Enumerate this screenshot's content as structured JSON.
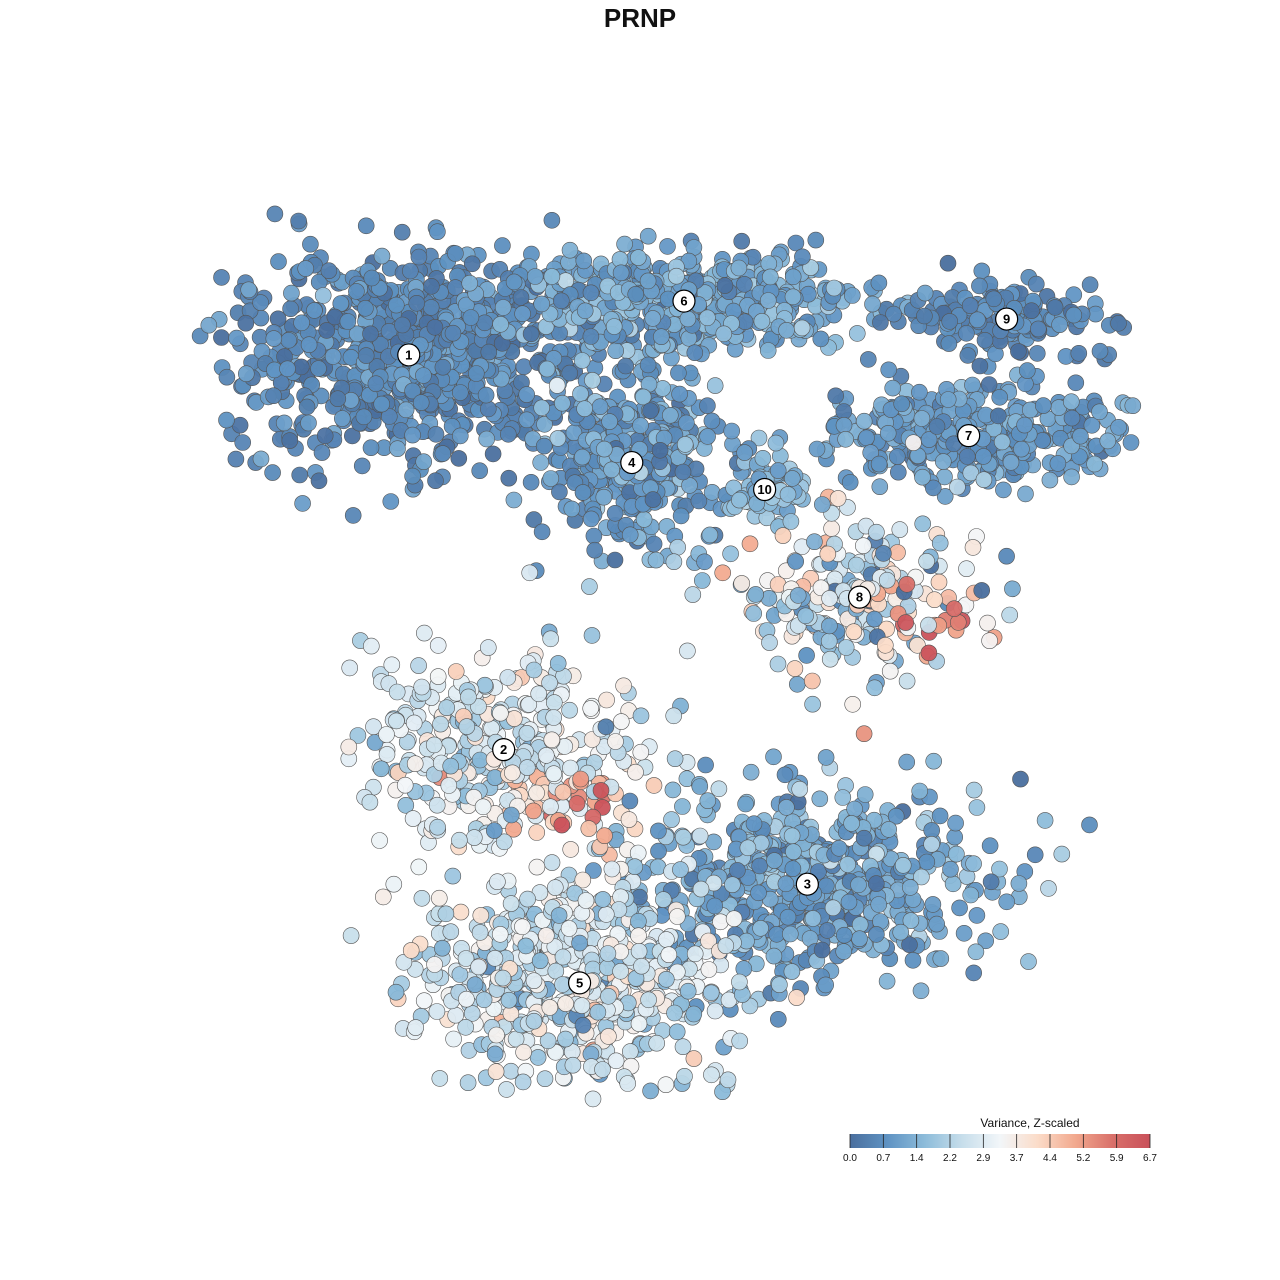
{
  "chart_data": {
    "type": "scatter",
    "title": "PRNP",
    "xlabel": "",
    "ylabel": "",
    "grid": false,
    "legend_placement": "bottom-right",
    "colorbar": {
      "title": "Variance, Z-scaled",
      "range": [
        0.0,
        6.7
      ],
      "ticks": [
        "0.0",
        "0.7",
        "1.4",
        "2.2",
        "2.9",
        "3.7",
        "4.4",
        "5.2",
        "5.9",
        "6.7"
      ],
      "colors": [
        "#4a6f9e",
        "#5f93c3",
        "#8dbcda",
        "#c7deeb",
        "#f2f6f9",
        "#fbdcc9",
        "#f2a98e",
        "#d9706a",
        "#c9505a"
      ]
    },
    "clusters": [
      {
        "label": "1",
        "center": [
          -2.6,
          2.25
        ],
        "spread": [
          0.95,
          0.55
        ],
        "mean_value": 0.6,
        "sd": 0.35
      },
      {
        "label": "6",
        "center": [
          0.3,
          2.85
        ],
        "spread": [
          0.95,
          0.28
        ],
        "mean_value": 1.2,
        "sd": 0.45
      },
      {
        "label": "4",
        "center": [
          -0.25,
          1.05
        ],
        "spread": [
          0.45,
          0.45
        ],
        "mean_value": 1.0,
        "sd": 0.5
      },
      {
        "label": "10",
        "center": [
          1.15,
          0.75
        ],
        "spread": [
          0.18,
          0.18
        ],
        "mean_value": 1.6,
        "sd": 0.4
      },
      {
        "label": "7",
        "center": [
          3.3,
          1.35
        ],
        "spread": [
          0.85,
          0.28
        ],
        "mean_value": 1.0,
        "sd": 0.35
      },
      {
        "label": "9",
        "center": [
          3.7,
          2.65
        ],
        "spread": [
          0.55,
          0.22
        ],
        "mean_value": 0.6,
        "sd": 0.3
      },
      {
        "label": "8",
        "center": [
          2.15,
          -0.45
        ],
        "spread": [
          0.65,
          0.45
        ],
        "mean_value": 2.4,
        "sd": 1.4
      },
      {
        "label": "2",
        "center": [
          -1.6,
          -2.15
        ],
        "spread": [
          0.75,
          0.55
        ],
        "mean_value": 2.8,
        "sd": 0.7
      },
      {
        "label": "3",
        "center": [
          1.6,
          -3.65
        ],
        "spread": [
          0.9,
          0.55
        ],
        "mean_value": 1.2,
        "sd": 0.5
      },
      {
        "label": "5",
        "center": [
          -0.8,
          -4.75
        ],
        "spread": [
          0.8,
          0.6
        ],
        "mean_value": 2.7,
        "sd": 0.8
      }
    ],
    "hotspots": [
      {
        "near_cluster": "2/5",
        "center": [
          -0.7,
          -2.8
        ],
        "value_range": [
          4.4,
          6.7
        ]
      },
      {
        "near_cluster": "8",
        "center": [
          2.9,
          -0.85
        ],
        "value_range": [
          4.4,
          6.7
        ]
      }
    ],
    "xlim": [
      -4.8,
      5.0
    ],
    "ylim": [
      -6.0,
      4.2
    ]
  }
}
